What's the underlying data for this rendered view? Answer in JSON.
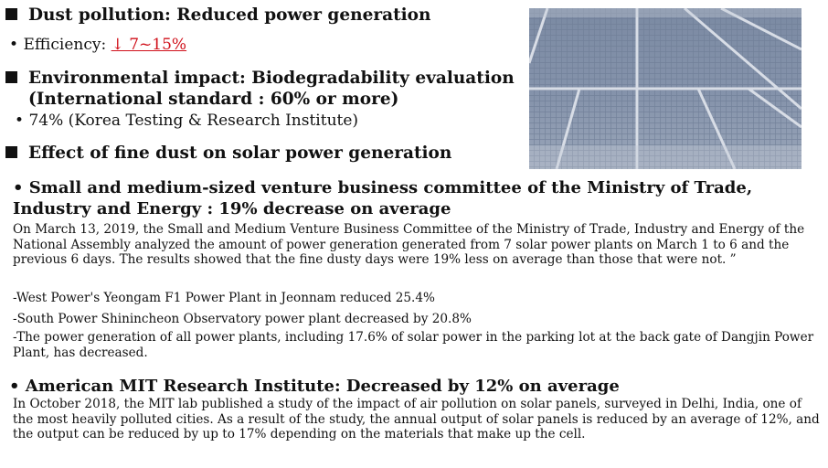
{
  "sections": {
    "dust": {
      "heading": "Dust pollution: Reduced power generation",
      "bullet_label": "Efficiency: ",
      "bullet_value": "↓ 7~15%"
    },
    "environment": {
      "heading": "Environmental impact: Biodegradability evaluation",
      "heading_line2": "(International standard : 60% or more)",
      "bullet": "74% (Korea Testing & Research Institute)"
    },
    "fine_dust": {
      "heading": "Effect of fine dust on solar power generation"
    }
  },
  "committee": {
    "title_line1": "• Small and medium-sized venture business committee of the Ministry of Trade,",
    "title_line2": "Industry and Energy : 19% decrease on average",
    "paragraph": "On March 13, 2019, the Small and Medium Venture Business Committee of the Ministry of Trade, Industry and Energy of the National Assembly analyzed the amount of power generation generated from 7 solar power plants on March 1 to 6 and the previous 6 days. The results showed that the fine dusty days were 19% less on average than those that were not. ”",
    "items": [
      "-West Power's Yeongam F1 Power Plant in Jeonnam reduced 25.4%",
      "-South Power Shinincheon Observatory power plant decreased by 20.8%",
      "-The power generation of all power plants, including 17.6% of solar power in the parking lot at the back gate of Dangjin Power Plant, has decreased."
    ]
  },
  "mit": {
    "title": "• American MIT Research Institute: Decreased by 12% on average",
    "paragraph": "In October 2018, the MIT lab published a study of the impact of air pollution on solar panels, surveyed in Delhi, India, one of the most heavily polluted cities. As a result of the study, the annual output of solar panels is reduced by an average of 12%, and the output can be reduced by up to 17% depending on the materials that make up the cell."
  },
  "colors": {
    "accent_red": "#d0101a",
    "text": "#111111"
  },
  "image": {
    "subject": "dusty-solar-panel-photo"
  }
}
